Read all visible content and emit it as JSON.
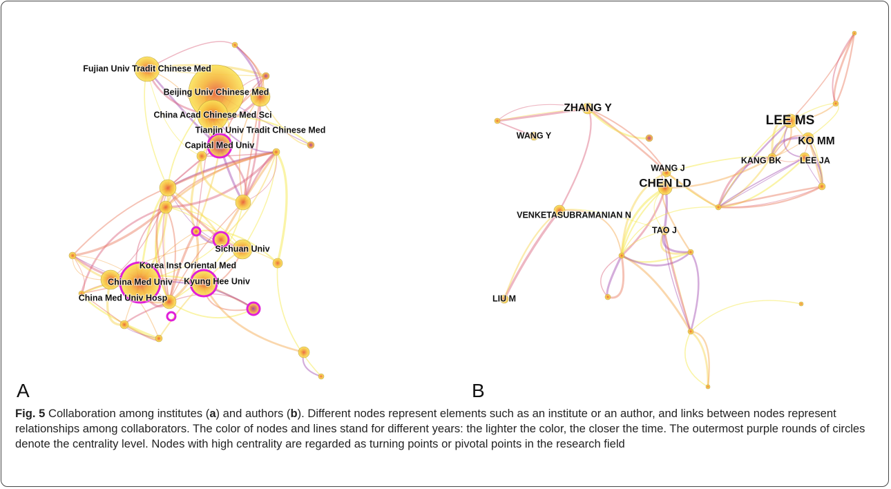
{
  "panels": [
    {
      "letter": "A",
      "nodes": [
        "Fujian Univ Tradit Chinese Med",
        "Beijing Univ Chinese Med",
        "China Acad Chinese Med Sci",
        "Tianjin Univ Tradit Chinese Med",
        "Capital Med Univ",
        "Sichuan Univ",
        "Korea Inst Oriental Med",
        "China Med Univ",
        "Kyung Hee Univ",
        "China Med Univ Hosp"
      ]
    },
    {
      "letter": "B",
      "nodes": [
        "ZHANG Y",
        "WANG Y",
        "LEE MS",
        "KO MM",
        "KANG BK",
        "LEE JA",
        "WANG J",
        "CHEN LD",
        "VENKETASUBRAMANIAN N",
        "TAO J",
        "LIU M"
      ]
    }
  ],
  "caption": {
    "label": "Fig. 5",
    "segments": [
      " Collaboration among institutes (",
      "a",
      ") and authors (",
      "b",
      "). Different nodes represent elements such as an institute or an author, and links between nodes represent relationships among collaborators. The color of nodes and lines stand for different years: the lighter the color, the closer the time. The outermost purple rounds of circles denote the centrality level. Nodes with high centrality are regarded as turning points or pivotal points in the research field"
    ]
  }
}
